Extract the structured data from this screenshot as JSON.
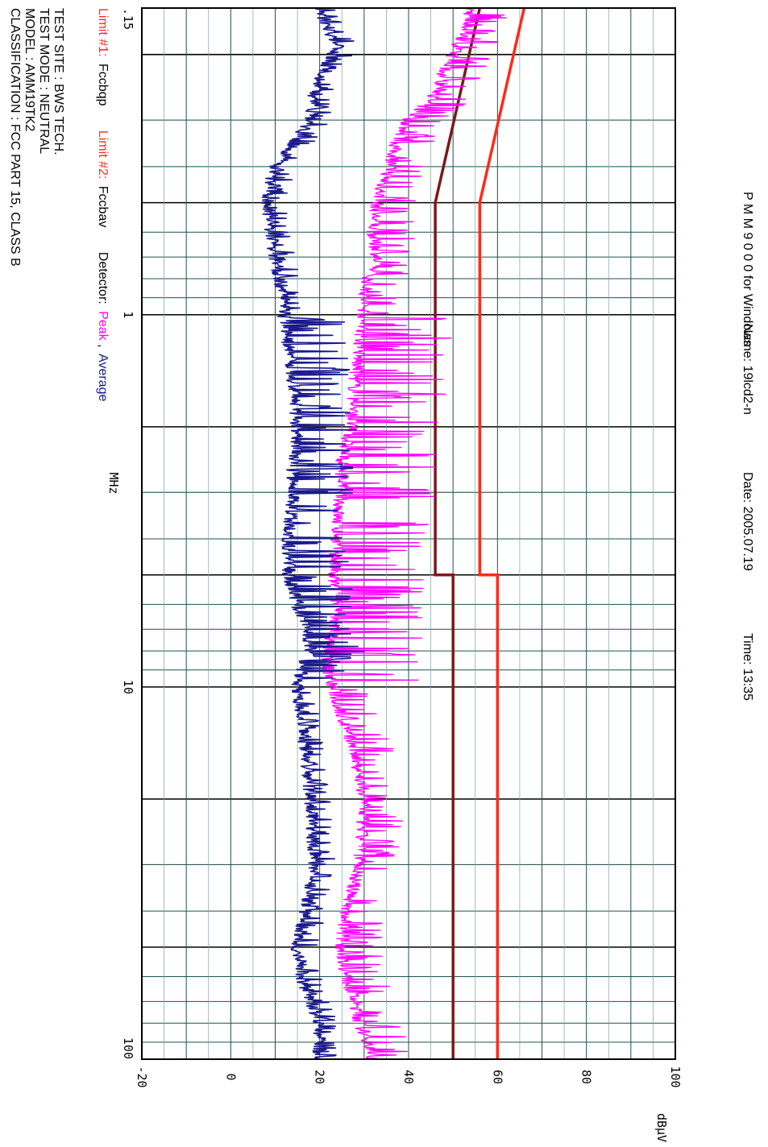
{
  "header": {
    "software": "P M M  9 0 0 0  for Windows",
    "name": "Name: 19lcd2-n",
    "date": "Date: 2005.07.19",
    "time": "Time: 13:35"
  },
  "legend": {
    "limit1_label": "Limit #1:",
    "limit1_name": "Fccbqp",
    "limit2_label": "Limit #2:",
    "limit2_name": "Fccbav",
    "detector_label": "Detector:",
    "detector_peak": "Peak",
    "detector_sep": ",",
    "detector_avg": "Average"
  },
  "info": {
    "test_site": "TEST SITE : BWS TECH.",
    "test_mode": "TEST MODE : NEUTRAL",
    "model": "MODEL : AMM19TK2",
    "classification": "CLASSIFICATION : FCC PART 15, CLASS B"
  },
  "colors": {
    "peak": "#ff00ff",
    "average": "#1a1a8c",
    "limit1": "#ff2a1a",
    "limit2": "#7a1a1a",
    "grid_major": "#000000",
    "grid_minor": "#1f4f4f",
    "grid_red": "#b03030",
    "legend_label": "#ff2a1a"
  },
  "chart_data": {
    "type": "line",
    "x_scale": "log",
    "xlim": [
      0.15,
      100
    ],
    "ylim": [
      -20,
      100
    ],
    "xlabel": "MHz",
    "ylabel": "dBμV",
    "x_ticks": [
      {
        "value": 0.15,
        "label": ".15"
      },
      {
        "value": 1,
        "label": "1"
      },
      {
        "value": 10,
        "label": "10"
      },
      {
        "value": 100,
        "label": "100"
      }
    ],
    "y_ticks": [
      {
        "value": -20,
        "label": "-20"
      },
      {
        "value": 0,
        "label": "0"
      },
      {
        "value": 20,
        "label": "20"
      },
      {
        "value": 40,
        "label": "40"
      },
      {
        "value": 60,
        "label": "60"
      },
      {
        "value": 80,
        "label": "80"
      },
      {
        "value": 100,
        "label": "100"
      }
    ],
    "grid": true,
    "limits": [
      {
        "name": "Fccbqp",
        "points": [
          [
            0.15,
            66
          ],
          [
            0.5,
            56
          ],
          [
            5,
            56
          ],
          [
            5,
            60
          ],
          [
            100,
            60
          ]
        ]
      },
      {
        "name": "Fccbav",
        "points": [
          [
            0.15,
            56
          ],
          [
            0.5,
            46
          ],
          [
            5,
            46
          ],
          [
            5,
            50
          ],
          [
            100,
            50
          ]
        ]
      }
    ],
    "series": [
      {
        "name": "Peak",
        "points": [
          [
            0.15,
            54
          ],
          [
            0.17,
            53
          ],
          [
            0.19,
            51
          ],
          [
            0.2,
            50
          ],
          [
            0.22,
            48
          ],
          [
            0.25,
            47
          ],
          [
            0.3,
            40
          ],
          [
            0.35,
            37
          ],
          [
            0.4,
            36
          ],
          [
            0.45,
            34
          ],
          [
            0.5,
            33
          ],
          [
            0.6,
            32
          ],
          [
            0.7,
            33
          ],
          [
            0.8,
            31
          ],
          [
            0.9,
            30
          ],
          [
            1.0,
            30
          ],
          [
            1.2,
            29
          ],
          [
            1.5,
            28
          ],
          [
            2.0,
            27
          ],
          [
            2.5,
            25
          ],
          [
            3.0,
            25
          ],
          [
            3.5,
            24
          ],
          [
            4.0,
            24
          ],
          [
            5.0,
            23
          ],
          [
            6.0,
            24
          ],
          [
            7.0,
            23
          ],
          [
            8.0,
            22
          ],
          [
            9.0,
            22
          ],
          [
            10,
            23
          ],
          [
            12,
            25
          ],
          [
            15,
            28
          ],
          [
            20,
            30
          ],
          [
            30,
            29
          ],
          [
            40,
            26
          ],
          [
            50,
            25
          ],
          [
            60,
            26
          ],
          [
            70,
            28
          ],
          [
            80,
            29
          ],
          [
            90,
            31
          ],
          [
            100,
            32
          ]
        ]
      },
      {
        "name": "Average",
        "points": [
          [
            0.15,
            20
          ],
          [
            0.17,
            22
          ],
          [
            0.19,
            24
          ],
          [
            0.21,
            22
          ],
          [
            0.25,
            19
          ],
          [
            0.3,
            18
          ],
          [
            0.35,
            14
          ],
          [
            0.4,
            10
          ],
          [
            0.45,
            9
          ],
          [
            0.5,
            8
          ],
          [
            0.6,
            9
          ],
          [
            0.7,
            10
          ],
          [
            0.8,
            11
          ],
          [
            0.9,
            12
          ],
          [
            1.0,
            12
          ],
          [
            1.2,
            13
          ],
          [
            1.5,
            14
          ],
          [
            2.0,
            15
          ],
          [
            2.5,
            14
          ],
          [
            3.0,
            14
          ],
          [
            4.0,
            13
          ],
          [
            5.0,
            13
          ],
          [
            6.0,
            15
          ],
          [
            7.0,
            17
          ],
          [
            8.0,
            18
          ],
          [
            9.0,
            16
          ],
          [
            10,
            15
          ],
          [
            12,
            16
          ],
          [
            15,
            17
          ],
          [
            20,
            18
          ],
          [
            30,
            19
          ],
          [
            40,
            17
          ],
          [
            50,
            15
          ],
          [
            60,
            16
          ],
          [
            70,
            18
          ],
          [
            80,
            20
          ],
          [
            90,
            20
          ],
          [
            100,
            20
          ]
        ]
      }
    ]
  }
}
